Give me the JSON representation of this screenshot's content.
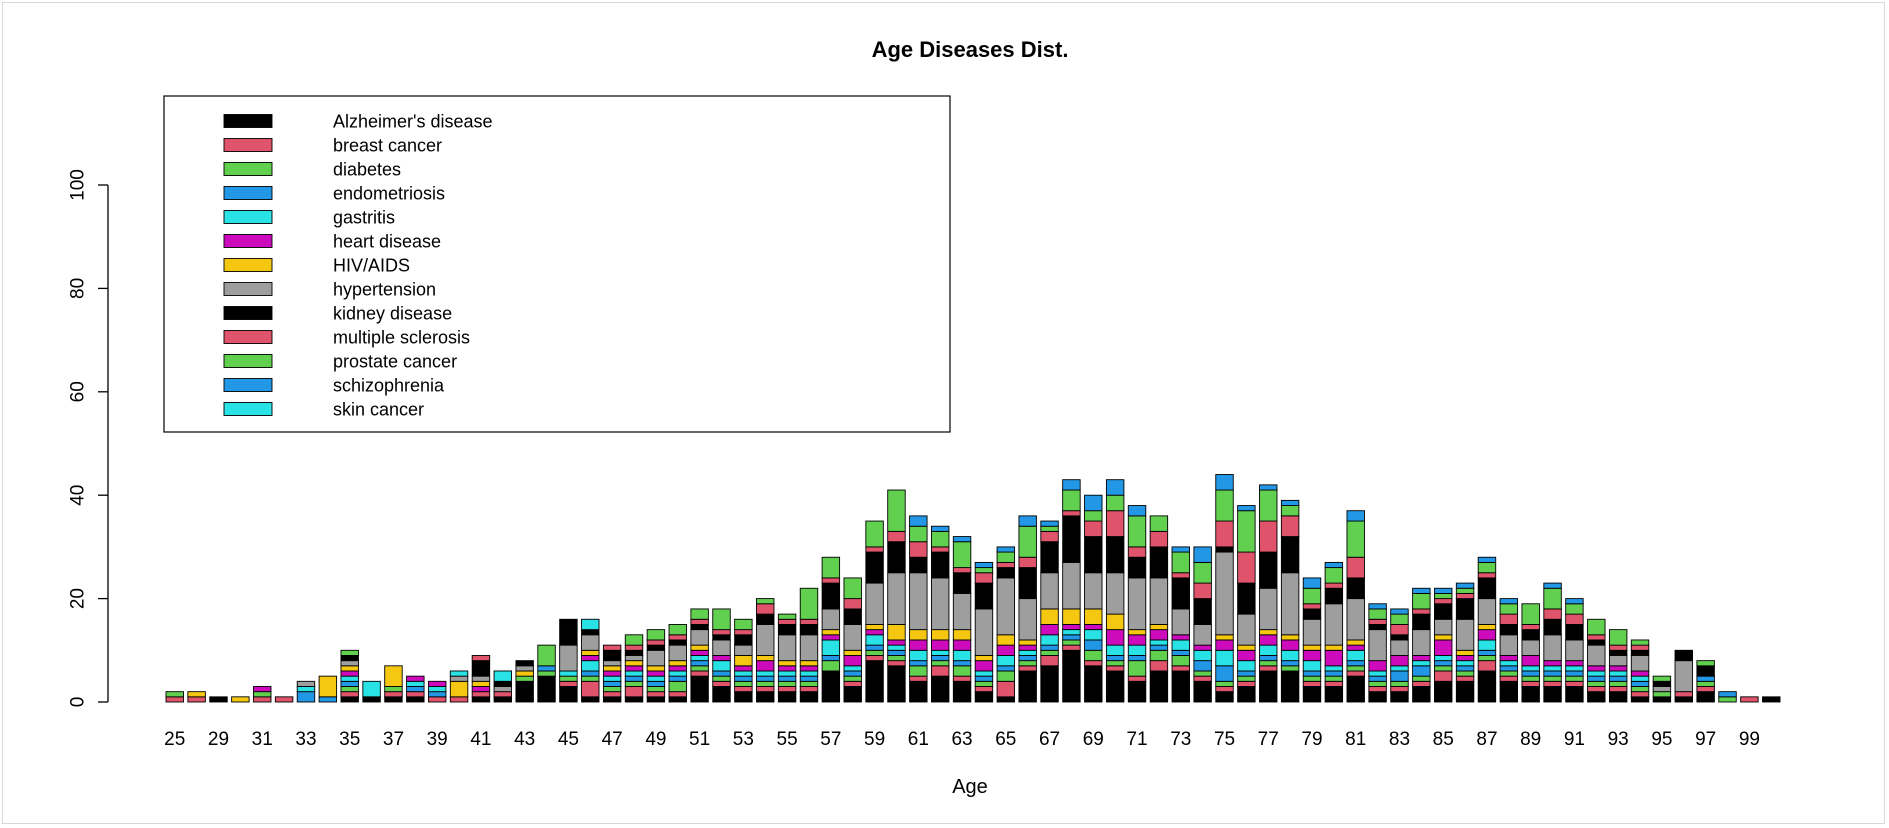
{
  "chart_data": {
    "type": "bar",
    "stacked": true,
    "title": "Age Diseases Dist.",
    "xlabel": "Age",
    "ylabel": "",
    "ylim": [
      0,
      100
    ],
    "yticks": [
      0,
      20,
      40,
      60,
      80,
      100
    ],
    "grid": false,
    "legend_position": "top-left",
    "categories": [
      "25",
      "26",
      "29",
      "30",
      "31",
      "32",
      "33",
      "34",
      "35",
      "36",
      "37",
      "38",
      "39",
      "40",
      "41",
      "42",
      "43",
      "44",
      "45",
      "46",
      "47",
      "48",
      "49",
      "50",
      "51",
      "52",
      "53",
      "54",
      "55",
      "56",
      "57",
      "58",
      "59",
      "60",
      "61",
      "62",
      "63",
      "64",
      "65",
      "66",
      "67",
      "68",
      "69",
      "70",
      "71",
      "72",
      "73",
      "74",
      "75",
      "76",
      "77",
      "78",
      "79",
      "80",
      "81",
      "82",
      "83",
      "84",
      "85",
      "86",
      "87",
      "88",
      "89",
      "90",
      "91",
      "92",
      "93",
      "94",
      "95",
      "96",
      "97",
      "98",
      "99",
      "100"
    ],
    "category_labels_shown": [
      "25",
      "29",
      "31",
      "33",
      "35",
      "37",
      "39",
      "41",
      "43",
      "45",
      "47",
      "49",
      "51",
      "53",
      "55",
      "57",
      "59",
      "61",
      "63",
      "65",
      "67",
      "69",
      "71",
      "73",
      "75",
      "77",
      "79",
      "81",
      "83",
      "85",
      "87",
      "89",
      "91",
      "93",
      "95",
      "97",
      "99"
    ],
    "series": [
      {
        "name": "Alzheimer's disease",
        "color": "#000000",
        "values": [
          0,
          0,
          1,
          0,
          0,
          0,
          0,
          0,
          1,
          1,
          1,
          1,
          0,
          0,
          1,
          1,
          4,
          5,
          3,
          1,
          1,
          1,
          1,
          1,
          5,
          3,
          2,
          2,
          2,
          2,
          6,
          3,
          8,
          7,
          4,
          5,
          4,
          2,
          1,
          6,
          7,
          10,
          7,
          6,
          4,
          6,
          6,
          4,
          2,
          3,
          6,
          6,
          3,
          3,
          5,
          2,
          2,
          3,
          4,
          4,
          6,
          4,
          3,
          3,
          3,
          2,
          2,
          1,
          1,
          1,
          2,
          0,
          0,
          1
        ]
      },
      {
        "name": "breast cancer",
        "color": "#DF536B",
        "values": [
          1,
          1,
          0,
          0,
          1,
          1,
          0,
          0,
          1,
          0,
          1,
          1,
          1,
          1,
          1,
          1,
          0,
          0,
          1,
          3,
          1,
          2,
          1,
          1,
          1,
          1,
          1,
          1,
          1,
          1,
          0,
          1,
          1,
          1,
          1,
          2,
          1,
          1,
          3,
          1,
          2,
          1,
          1,
          1,
          1,
          2,
          1,
          1,
          1,
          1,
          1,
          0,
          1,
          1,
          1,
          1,
          1,
          1,
          2,
          1,
          2,
          1,
          1,
          1,
          1,
          1,
          1,
          1,
          0,
          1,
          1,
          0,
          1,
          0
        ]
      },
      {
        "name": "diabetes",
        "color": "#61D04F",
        "values": [
          1,
          0,
          0,
          0,
          1,
          0,
          0,
          0,
          1,
          0,
          1,
          0,
          0,
          0,
          0,
          0,
          1,
          1,
          1,
          1,
          1,
          1,
          1,
          2,
          1,
          1,
          1,
          1,
          1,
          1,
          2,
          1,
          1,
          1,
          2,
          1,
          2,
          1,
          2,
          1,
          1,
          1,
          2,
          1,
          3,
          2,
          2,
          1,
          1,
          1,
          1,
          1,
          1,
          1,
          1,
          1,
          1,
          1,
          1,
          1,
          1,
          1,
          1,
          1,
          1,
          1,
          1,
          1,
          1,
          0,
          1,
          1,
          0,
          0
        ]
      },
      {
        "name": "endometriosis",
        "color": "#2297E6",
        "values": [
          0,
          0,
          0,
          0,
          0,
          0,
          2,
          1,
          1,
          0,
          0,
          1,
          1,
          0,
          0,
          0,
          0,
          1,
          0,
          1,
          1,
          1,
          1,
          1,
          1,
          1,
          1,
          1,
          1,
          1,
          1,
          1,
          1,
          1,
          1,
          1,
          1,
          1,
          1,
          1,
          1,
          1,
          2,
          1,
          1,
          1,
          1,
          2,
          3,
          1,
          1,
          1,
          1,
          1,
          1,
          1,
          2,
          2,
          1,
          1,
          1,
          1,
          1,
          1,
          1,
          1,
          1,
          1,
          0,
          0,
          1,
          1,
          0,
          0
        ]
      },
      {
        "name": "gastritis",
        "color": "#28E2E5",
        "values": [
          0,
          0,
          0,
          0,
          0,
          0,
          1,
          0,
          1,
          3,
          0,
          1,
          1,
          0,
          0,
          0,
          0,
          0,
          1,
          2,
          1,
          1,
          1,
          1,
          1,
          2,
          1,
          1,
          1,
          1,
          3,
          1,
          2,
          1,
          2,
          1,
          2,
          1,
          2,
          1,
          2,
          1,
          2,
          2,
          2,
          1,
          2,
          2,
          3,
          2,
          2,
          2,
          2,
          1,
          2,
          1,
          1,
          1,
          1,
          1,
          2,
          1,
          1,
          1,
          1,
          1,
          1,
          1,
          0,
          0,
          0,
          0,
          0,
          0
        ]
      },
      {
        "name": "heart disease",
        "color": "#CD0BBC",
        "values": [
          0,
          0,
          0,
          0,
          1,
          0,
          0,
          0,
          1,
          0,
          0,
          1,
          1,
          0,
          1,
          0,
          0,
          0,
          0,
          1,
          1,
          1,
          1,
          1,
          1,
          1,
          1,
          2,
          1,
          1,
          1,
          2,
          1,
          1,
          2,
          2,
          2,
          2,
          2,
          1,
          2,
          1,
          1,
          3,
          2,
          2,
          1,
          1,
          2,
          2,
          2,
          2,
          2,
          3,
          1,
          2,
          2,
          1,
          3,
          1,
          2,
          1,
          2,
          1,
          1,
          1,
          1,
          1,
          0,
          0,
          0,
          0,
          0,
          0
        ]
      },
      {
        "name": "HIV/AIDS",
        "color": "#F5C710",
        "values": [
          0,
          1,
          0,
          1,
          0,
          0,
          0,
          4,
          1,
          0,
          4,
          0,
          0,
          3,
          1,
          0,
          1,
          0,
          0,
          1,
          1,
          1,
          1,
          1,
          1,
          0,
          2,
          1,
          1,
          1,
          1,
          1,
          1,
          3,
          2,
          2,
          2,
          1,
          2,
          1,
          3,
          3,
          3,
          3,
          1,
          1,
          0,
          0,
          1,
          1,
          1,
          1,
          1,
          1,
          1,
          0,
          0,
          0,
          1,
          1,
          1,
          0,
          0,
          0,
          0,
          0,
          0,
          0,
          0,
          0,
          0,
          0,
          0,
          0
        ]
      },
      {
        "name": "hypertension",
        "color": "#9E9E9E",
        "values": [
          0,
          0,
          0,
          0,
          0,
          0,
          1,
          0,
          1,
          0,
          0,
          0,
          0,
          1,
          1,
          1,
          1,
          0,
          5,
          3,
          1,
          1,
          3,
          3,
          3,
          3,
          2,
          6,
          5,
          5,
          4,
          5,
          8,
          10,
          11,
          10,
          7,
          9,
          11,
          8,
          7,
          9,
          7,
          8,
          10,
          9,
          5,
          4,
          16,
          6,
          8,
          12,
          5,
          8,
          8,
          6,
          3,
          5,
          3,
          6,
          5,
          4,
          3,
          5,
          4,
          4,
          2,
          3,
          1,
          6,
          0,
          0,
          0,
          0
        ]
      },
      {
        "name": "kidney disease",
        "color": "#000000",
        "values": [
          0,
          0,
          0,
          0,
          0,
          0,
          0,
          0,
          1,
          0,
          0,
          0,
          0,
          0,
          3,
          1,
          1,
          0,
          5,
          1,
          2,
          1,
          1,
          1,
          1,
          1,
          2,
          2,
          2,
          2,
          5,
          3,
          6,
          6,
          3,
          5,
          4,
          5,
          2,
          6,
          6,
          9,
          7,
          7,
          4,
          6,
          6,
          5,
          1,
          6,
          7,
          7,
          2,
          3,
          4,
          1,
          1,
          3,
          3,
          4,
          4,
          2,
          2,
          3,
          3,
          1,
          1,
          1,
          1,
          2,
          2,
          0,
          0,
          0
        ]
      },
      {
        "name": "multiple sclerosis",
        "color": "#DF536B",
        "values": [
          0,
          0,
          0,
          0,
          0,
          0,
          0,
          0,
          0,
          0,
          0,
          0,
          0,
          0,
          1,
          0,
          0,
          0,
          0,
          0,
          1,
          1,
          1,
          1,
          1,
          1,
          1,
          2,
          1,
          1,
          1,
          2,
          1,
          2,
          3,
          1,
          1,
          2,
          1,
          2,
          2,
          1,
          3,
          5,
          2,
          3,
          1,
          3,
          5,
          6,
          6,
          4,
          1,
          1,
          4,
          1,
          2,
          1,
          1,
          1,
          1,
          2,
          1,
          2,
          2,
          1,
          1,
          1,
          0,
          0,
          0,
          0,
          0,
          0
        ]
      },
      {
        "name": "prostate cancer",
        "color": "#61D04F",
        "values": [
          0,
          0,
          0,
          0,
          0,
          0,
          0,
          0,
          1,
          0,
          0,
          0,
          0,
          0,
          0,
          0,
          0,
          4,
          0,
          0,
          0,
          2,
          2,
          2,
          2,
          4,
          2,
          1,
          1,
          6,
          4,
          4,
          5,
          8,
          3,
          3,
          5,
          1,
          2,
          6,
          1,
          4,
          2,
          3,
          6,
          3,
          4,
          4,
          6,
          8,
          6,
          2,
          3,
          3,
          7,
          2,
          2,
          3,
          1,
          1,
          2,
          2,
          4,
          4,
          2,
          3,
          3,
          1,
          1,
          0,
          1,
          0,
          0,
          0
        ]
      },
      {
        "name": "schizophrenia",
        "color": "#2297E6",
        "values": [
          0,
          0,
          0,
          0,
          0,
          0,
          0,
          0,
          0,
          0,
          0,
          0,
          0,
          0,
          0,
          0,
          0,
          0,
          0,
          0,
          0,
          0,
          0,
          0,
          0,
          0,
          0,
          0,
          0,
          0,
          0,
          0,
          0,
          0,
          2,
          1,
          1,
          1,
          1,
          2,
          1,
          2,
          3,
          3,
          2,
          0,
          1,
          3,
          3,
          1,
          1,
          1,
          2,
          1,
          2,
          1,
          1,
          1,
          1,
          1,
          1,
          1,
          0,
          1,
          1,
          0,
          0,
          0,
          0,
          0,
          0,
          0,
          0,
          0
        ]
      },
      {
        "name": "skin cancer",
        "color": "#28E2E5",
        "values": [
          0,
          0,
          0,
          0,
          0,
          0,
          0,
          0,
          0,
          0,
          0,
          0,
          0,
          1,
          0,
          2,
          0,
          0,
          0,
          2,
          0,
          0,
          0,
          0,
          0,
          0,
          0,
          0,
          0,
          0,
          0,
          0,
          0,
          0,
          0,
          0,
          0,
          0,
          0,
          0,
          0,
          0,
          0,
          0,
          0,
          0,
          0,
          0,
          0,
          0,
          0,
          0,
          0,
          0,
          0,
          0,
          0,
          0,
          0,
          0,
          0,
          0,
          0,
          0,
          0,
          0,
          0,
          0,
          0,
          0,
          0,
          0,
          0,
          0
        ]
      }
    ]
  }
}
